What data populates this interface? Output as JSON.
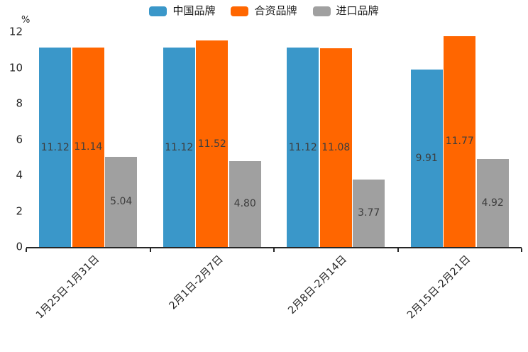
{
  "chart_data": {
    "type": "bar",
    "title": "",
    "xlabel": "",
    "ylabel": "%",
    "ylim": [
      0,
      12
    ],
    "yticks": [
      0,
      2,
      4,
      6,
      8,
      10,
      12
    ],
    "grid": false,
    "legend_position": "top",
    "value_label_decimals": 2,
    "categories": [
      "1月25日-1月31日",
      "2月1日-2月7日",
      "2月8日-2月14日",
      "2月15日-2月21日"
    ],
    "series": [
      {
        "name": "中国品牌",
        "color": "#3A97C9",
        "values": [
          11.12,
          11.12,
          11.12,
          9.91
        ]
      },
      {
        "name": "合资品牌",
        "color": "#FF6600",
        "values": [
          11.14,
          11.52,
          11.08,
          11.77
        ]
      },
      {
        "name": "进口品牌",
        "color": "#A0A0A0",
        "values": [
          5.04,
          4.8,
          3.77,
          4.92
        ]
      }
    ],
    "colors": {
      "axis": "#262626",
      "tick_label": "#262626",
      "value_label": "#3d3d3d",
      "background": "#ffffff"
    }
  }
}
